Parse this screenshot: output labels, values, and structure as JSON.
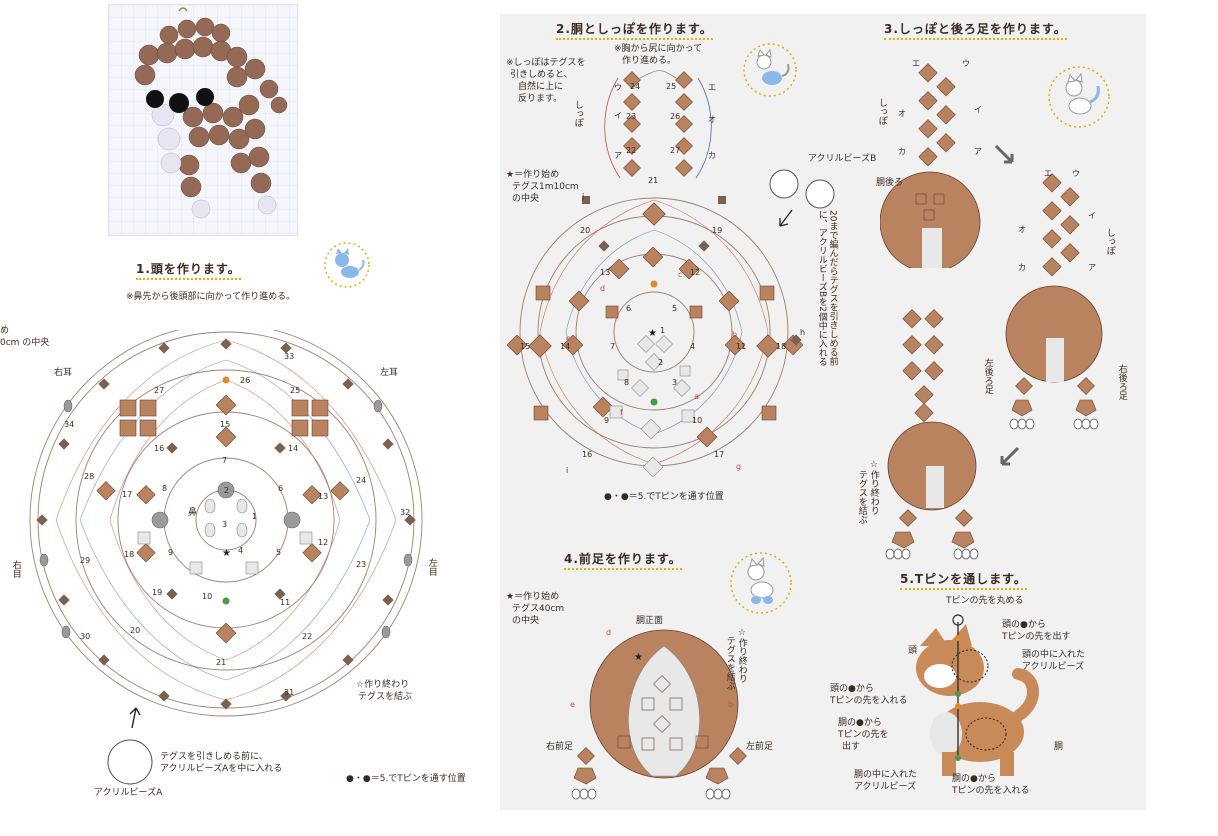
{
  "step1": {
    "title": "1.頭を作ります。",
    "note": "※鼻先から後頭部に向かって作り進める。",
    "start_a": "め",
    "start_b": "0cm の中央",
    "right_ear": "右耳",
    "left_ear": "左耳",
    "right_eye": "右目",
    "left_eye": "左目",
    "nose": "鼻",
    "end_note_1": "☆作り終わり",
    "end_note_2": "テグスを結ぶ",
    "bead_note_1": "テグスを引きしめる前に、",
    "bead_note_2": "アクリルビーズAを中に入れる",
    "bead_label": "アクリルビーズA",
    "tpin_note": "●・●＝5.でTピンを通す位置",
    "numbers": [
      "1",
      "2",
      "3",
      "4",
      "5",
      "6",
      "7",
      "8",
      "9",
      "10",
      "11",
      "12",
      "13",
      "14",
      "15",
      "16",
      "17",
      "18",
      "19",
      "20",
      "21",
      "22",
      "23",
      "24",
      "25",
      "26",
      "27",
      "28",
      "29",
      "30",
      "31",
      "32",
      "33",
      "34"
    ]
  },
  "step2": {
    "title": "2.胴としっぽを作ります。",
    "note_top_1": "※胸から尻に向かって",
    "note_top_2": "作り進める。",
    "tail_note_1": "※しっぽはテグスを",
    "tail_note_2": "引きしめると、",
    "tail_note_3": "自然に上に",
    "tail_note_4": "反ります。",
    "tail_label": "しっぽ",
    "start_note_1": "★＝作り始め",
    "start_note_2": "テグス1m10cm",
    "start_note_3": "の中央",
    "bead_label": "アクリルビーズB",
    "vertical_note": "20まで編んだらテグスを引きしめる前に、アクリルビーズBを2個中に入れる",
    "tpin_note": "●・●＝5.でTピンを通す位置",
    "kana": [
      "ウ",
      "イ",
      "ア",
      "エ",
      "オ",
      "カ"
    ],
    "letters": [
      "a",
      "b",
      "c",
      "d",
      "e",
      "f",
      "g",
      "h",
      "i",
      "j"
    ],
    "numbers": [
      "1",
      "2",
      "3",
      "4",
      "5",
      "6",
      "7",
      "8",
      "9",
      "10",
      "11",
      "12",
      "13",
      "14",
      "15",
      "16",
      "17",
      "18",
      "19",
      "20",
      "21",
      "22",
      "23",
      "24",
      "25",
      "26",
      "27"
    ]
  },
  "step3": {
    "title": "3.しっぽと後ろ足を作ります。",
    "body_back": "胴後ろ",
    "tail_label": "しっぽ",
    "left_hind": "左後ろ足",
    "right_hind": "右後ろ足",
    "end_note_1": "☆作り終わり",
    "end_note_2": "テグスを結ぶ",
    "kana": [
      "エ",
      "ウ",
      "オ",
      "イ",
      "カ",
      "ア"
    ]
  },
  "step4": {
    "title": "4.前足を作ります。",
    "start_note_1": "★＝作り始め",
    "start_note_2": "テグス40cm",
    "start_note_3": "の中央",
    "body_front": "胴正面",
    "end_note_1": "☆作り終わり",
    "end_note_2": "テグスを結ぶ",
    "right_front": "右前足",
    "left_front": "左前足"
  },
  "step5": {
    "title": "5.Tピンを通します。",
    "pin_top": "Tピンの先を丸める",
    "head": "頭",
    "head_from_1": "頭の●から",
    "head_from_2": "Tピンの先を出す",
    "head_bead_1": "頭の中に入れた",
    "head_bead_2": "アクリルビーズ",
    "head_in_1": "頭の●から",
    "head_in_2": "Tピンの先を入れる",
    "body_out_1": "胴の●から",
    "body_out_2": "Tピンの先を",
    "body_out_3": "出す",
    "body": "胴",
    "body_bead_1": "胴の中に入れた",
    "body_bead_2": "アクリルビーズ",
    "body_in_1": "胴の●から",
    "body_in_2": "Tピンの先を入れる"
  },
  "colors": {
    "bead_brown": "#b9835f",
    "bead_dark": "#7a6252",
    "bead_clear": "#e8e8e8",
    "accent_yellow": "#e0b000",
    "dot_orange": "#e08a2a",
    "dot_green": "#4a9a4a",
    "line_red": "#c05040",
    "line_blue": "#4a6ab0"
  }
}
